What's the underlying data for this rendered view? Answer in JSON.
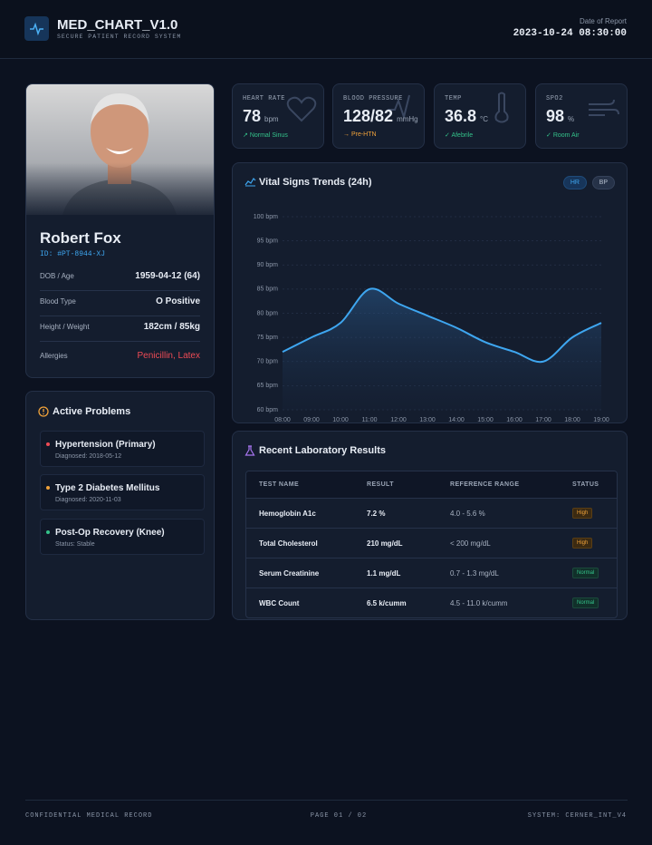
{
  "header": {
    "title": "MED_CHART_V1.0",
    "subtitle": "SECURE PATIENT RECORD SYSTEM",
    "date_label": "Date of Report",
    "date": "2023-10-24 08:30:00"
  },
  "patient": {
    "name": "Robert Fox",
    "id": "ID: #PT-8944-XJ",
    "fields": [
      {
        "label": "DOB / Age",
        "value": "1959-04-12 (64)"
      },
      {
        "label": "Blood Type",
        "value": "O Positive"
      },
      {
        "label": "Height / Weight",
        "value": "182cm / 85kg"
      },
      {
        "label": "Allergies",
        "value": "Penicillin, Latex"
      }
    ]
  },
  "vitals": [
    {
      "label": "HEART RATE",
      "value": 78,
      "unit": "bpm",
      "note": "Normal Sinus"
    },
    {
      "label": "BLOOD PRESSURE",
      "value": "128/82",
      "unit": "mmHg",
      "note": "Pre-HTN"
    },
    {
      "label": "TEMP",
      "value": 36.8,
      "unit": "°C",
      "note": "Afebrile"
    },
    {
      "label": "SPO2",
      "value": 98,
      "unit": "%",
      "note": "Room Air"
    }
  ],
  "chart_data": {
    "type": "line",
    "title": "Vital Signs Trends (24h)",
    "categories": [
      "08:00",
      "09:00",
      "10:00",
      "11:00",
      "12:00",
      "13:00",
      "14:00",
      "15:00",
      "16:00",
      "17:00",
      "18:00",
      "19:00"
    ],
    "series": [
      {
        "name": "HR",
        "color": "#3ea6f0",
        "values": [
          72,
          75,
          78,
          85,
          82,
          79.5,
          77,
          74,
          72,
          70,
          75,
          78
        ]
      }
    ],
    "inactive_series": [
      "BP"
    ],
    "ylim": [
      60,
      100
    ],
    "yticks": [
      {
        "value": 60,
        "label": "60 bpm"
      },
      {
        "value": 65,
        "label": "65 bpm"
      },
      {
        "value": 70,
        "label": "70 bpm"
      },
      {
        "value": 75,
        "label": "75 bpm"
      },
      {
        "value": 80,
        "label": "80 bpm"
      },
      {
        "value": 85,
        "label": "85 bpm"
      },
      {
        "value": 90,
        "label": "90 bpm"
      },
      {
        "value": 95,
        "label": "95 bpm"
      },
      {
        "value": 100,
        "label": "100 bpm"
      }
    ],
    "grid": true
  },
  "problems": {
    "title": "Active Problems",
    "items": [
      {
        "name": "Hypertension (Primary)",
        "detail": "Diagnosed: 2018-05-12"
      },
      {
        "name": "Type 2 Diabetes Mellitus",
        "detail": "Diagnosed: 2020-11-03"
      },
      {
        "name": "Post-Op Recovery (Knee)",
        "detail": "Status: Stable"
      }
    ]
  },
  "labs": {
    "title": "Recent Laboratory Results",
    "columns": [
      "TEST NAME",
      "RESULT",
      "REFERENCE RANGE",
      "STATUS"
    ],
    "rows": [
      [
        "Hemoglobin A1c",
        "7.2 %",
        "4.0 - 5.6 %",
        "High"
      ],
      [
        "Total Cholesterol",
        "210 mg/dL",
        "< 200 mg/dL",
        "High"
      ],
      [
        "Serum Creatinine",
        "1.1 mg/dL",
        "0.7 - 1.3 mg/dL",
        "Normal"
      ],
      [
        "WBC Count",
        "6.5 k/cumm",
        "4.5 - 11.0 k/cumm",
        "Normal"
      ]
    ]
  },
  "footer": {
    "left": "CONFIDENTIAL MEDICAL RECORD",
    "center": "PAGE 01 / 02",
    "right": "SYSTEM: CERNER_INT_V4"
  }
}
